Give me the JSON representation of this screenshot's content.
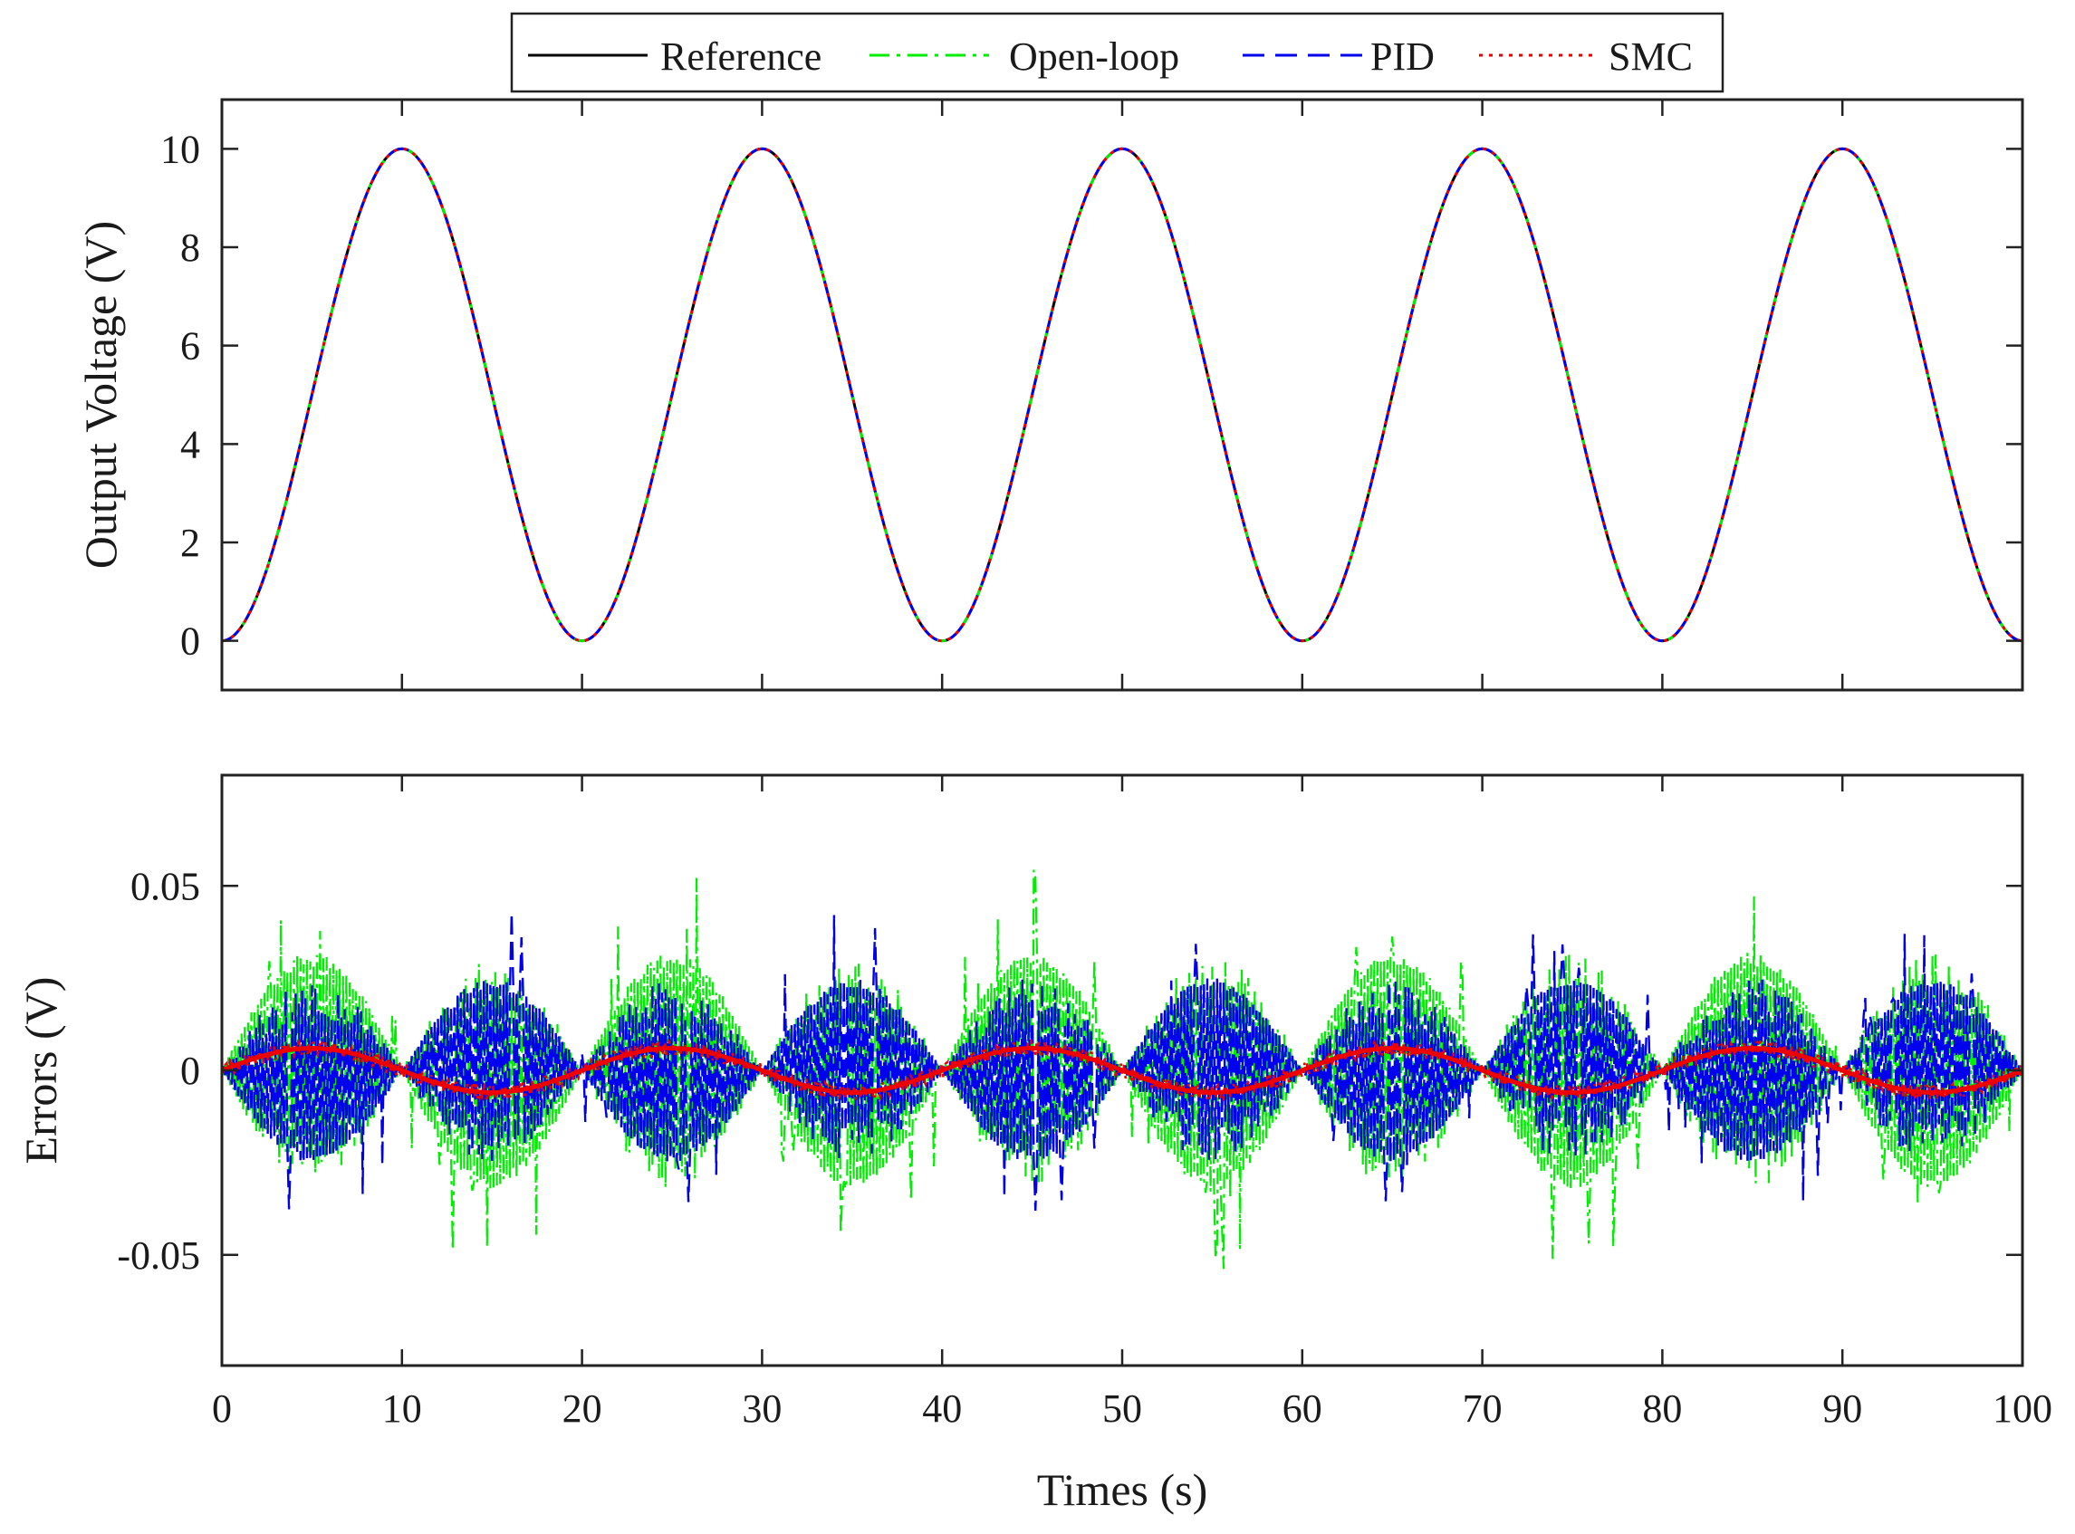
{
  "chart_data": [
    {
      "type": "line",
      "id": "top",
      "ylabel": "Output Voltage (V)",
      "xlim": [
        0,
        100
      ],
      "ylim": [
        -1,
        11
      ],
      "yticks": [
        0,
        2,
        4,
        6,
        8,
        10
      ],
      "ytick_labels": [
        "0",
        "2",
        "4",
        "6",
        "8",
        "10"
      ],
      "grid": false,
      "description": "All four curves overlap: y = 5*(1 - cos(2*pi*t/20)), period 20 s, peaks of 10 V at t = 10, 30, 50, 70, 90 and minima of 0 V at t = 0, 20, 40, 60, 80, 100",
      "x": [
        0,
        2.5,
        5,
        7.5,
        10,
        12.5,
        15,
        17.5,
        20,
        22.5,
        25,
        27.5,
        30,
        32.5,
        35,
        37.5,
        40,
        42.5,
        45,
        47.5,
        50,
        52.5,
        55,
        57.5,
        60,
        62.5,
        65,
        67.5,
        70,
        72.5,
        75,
        77.5,
        80,
        82.5,
        85,
        87.5,
        90,
        92.5,
        95,
        97.5,
        100
      ],
      "series": [
        {
          "name": "Reference",
          "values": [
            0,
            1.46,
            5,
            8.54,
            10,
            8.54,
            5,
            1.46,
            0,
            1.46,
            5,
            8.54,
            10,
            8.54,
            5,
            1.46,
            0,
            1.46,
            5,
            8.54,
            10,
            8.54,
            5,
            1.46,
            0,
            1.46,
            5,
            8.54,
            10,
            8.54,
            5,
            1.46,
            0,
            1.46,
            5,
            8.54,
            10,
            8.54,
            5,
            1.46,
            0
          ]
        },
        {
          "name": "Open-loop",
          "values": [
            0,
            1.46,
            5,
            8.54,
            10,
            8.54,
            5,
            1.46,
            0,
            1.46,
            5,
            8.54,
            10,
            8.54,
            5,
            1.46,
            0,
            1.46,
            5,
            8.54,
            10,
            8.54,
            5,
            1.46,
            0,
            1.46,
            5,
            8.54,
            10,
            8.54,
            5,
            1.46,
            0,
            1.46,
            5,
            8.54,
            10,
            8.54,
            5,
            1.46,
            0
          ]
        },
        {
          "name": "PID",
          "values": [
            0,
            1.46,
            5,
            8.54,
            10,
            8.54,
            5,
            1.46,
            0,
            1.46,
            5,
            8.54,
            10,
            8.54,
            5,
            1.46,
            0,
            1.46,
            5,
            8.54,
            10,
            8.54,
            5,
            1.46,
            0,
            1.46,
            5,
            8.54,
            10,
            8.54,
            5,
            1.46,
            0,
            1.46,
            5,
            8.54,
            10,
            8.54,
            5,
            1.46,
            0
          ]
        },
        {
          "name": "SMC",
          "values": [
            0,
            1.46,
            5,
            8.54,
            10,
            8.54,
            5,
            1.46,
            0,
            1.46,
            5,
            8.54,
            10,
            8.54,
            5,
            1.46,
            0,
            1.46,
            5,
            8.54,
            10,
            8.54,
            5,
            1.46,
            0,
            1.46,
            5,
            8.54,
            10,
            8.54,
            5,
            1.46,
            0,
            1.46,
            5,
            8.54,
            10,
            8.54,
            5,
            1.46,
            0
          ]
        }
      ]
    },
    {
      "type": "line",
      "id": "bottom",
      "xlabel": "Times (s)",
      "ylabel": "Errors (V)",
      "xlim": [
        0,
        100
      ],
      "ylim": [
        -0.08,
        0.08
      ],
      "xticks": [
        0,
        10,
        20,
        30,
        40,
        50,
        60,
        70,
        80,
        90,
        100
      ],
      "xtick_labels": [
        "0",
        "10",
        "20",
        "30",
        "40",
        "50",
        "60",
        "70",
        "80",
        "90",
        "100"
      ],
      "yticks": [
        -0.05,
        0,
        0.05
      ],
      "ytick_labels": [
        "-0.05",
        "0",
        "0.05"
      ],
      "grid": false,
      "description": "Error signals: Open-loop has a chattering envelope of about +/-0.032 V (positive lobes centred at 5, 25, 45, 65, 85 s with spikes up to ~0.056 V); PID has an envelope of about +/-0.025 V in anti-phase with spikes up to ~0.045 V; SMC stays within about +/-0.006 V, roughly sinusoidal with period 20 s.",
      "series": [
        {
          "name": "Open-loop",
          "envelope_amplitude": 0.032,
          "spike_max": 0.056,
          "period": 20,
          "phase": "positive lobes at t = 5, 25, 45, 65, 85"
        },
        {
          "name": "PID",
          "envelope_amplitude": 0.025,
          "spike_max": 0.045,
          "period": 20,
          "phase": "positive lobes at t = 15, 35, 55, 75, 95"
        },
        {
          "name": "SMC",
          "amplitude": 0.006,
          "period": 20,
          "phase": "peaks at t = 5, 25, 45, 65, 85"
        }
      ]
    }
  ],
  "legend": {
    "placement": "top-center",
    "entries": [
      {
        "label": "Reference",
        "color": "#000000",
        "style": "solid"
      },
      {
        "label": "Open-loop",
        "color": "#00ee00",
        "style": "dashdot"
      },
      {
        "label": "PID",
        "color": "#0000ee",
        "style": "dashed"
      },
      {
        "label": "SMC",
        "color": "#ee0000",
        "style": "dotted"
      }
    ]
  },
  "colors": {
    "reference": "#000000",
    "open_loop": "#00ee00",
    "pid": "#0000ee",
    "smc": "#ee0000",
    "axes": "#222222"
  }
}
